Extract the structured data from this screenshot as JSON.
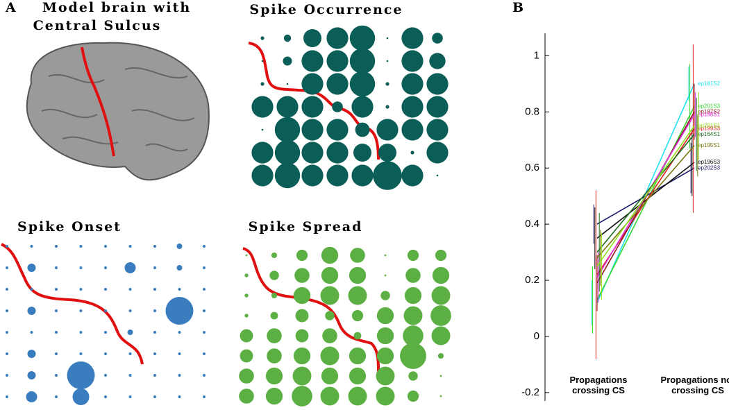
{
  "labels": {
    "panel_a": "A",
    "panel_b": "B",
    "brain_title": [
      "Model brain with",
      "Central Sulcus"
    ]
  },
  "chart_data": [
    {
      "type": "bubble-grid",
      "title": "Spike Occurrence",
      "color": "#0b5e57",
      "values": [
        [
          2,
          4,
          10,
          12,
          14,
          1,
          12,
          6
        ],
        [
          1,
          5,
          12,
          12,
          14,
          1,
          12,
          9
        ],
        [
          2,
          1,
          12,
          12,
          14,
          2,
          12,
          12
        ],
        [
          12,
          12,
          12,
          6,
          12,
          2,
          12,
          12
        ],
        [
          1,
          14,
          12,
          12,
          8,
          12,
          12,
          12
        ],
        [
          12,
          14,
          12,
          12,
          10,
          10,
          2,
          12
        ],
        [
          12,
          14,
          12,
          12,
          12,
          16,
          12,
          1
        ]
      ]
    },
    {
      "type": "bubble-grid",
      "title": "Spike Onset",
      "color": "#3a7dbf",
      "values": [
        [
          1,
          1,
          1,
          1,
          1,
          1,
          1,
          2,
          1
        ],
        [
          1,
          3,
          1,
          1,
          1,
          4,
          1,
          2,
          1
        ],
        [
          1,
          1,
          1,
          1,
          1,
          1,
          1,
          1,
          1
        ],
        [
          1,
          3,
          1,
          1,
          1,
          1,
          1,
          10,
          1
        ],
        [
          1,
          1,
          1,
          1,
          1,
          2,
          1,
          1,
          1
        ],
        [
          1,
          3,
          1,
          1,
          1,
          1,
          1,
          1,
          1
        ],
        [
          1,
          3,
          1,
          10,
          1,
          1,
          1,
          1,
          1
        ],
        [
          1,
          4,
          1,
          6,
          1,
          1,
          1,
          1,
          1
        ]
      ]
    },
    {
      "type": "bubble-grid",
      "title": "Spike Spread",
      "color": "#5cb043",
      "values": [
        [
          1,
          3,
          6,
          9,
          8,
          1,
          6,
          6
        ],
        [
          2,
          5,
          8,
          9,
          9,
          1,
          8,
          9
        ],
        [
          2,
          3,
          9,
          10,
          10,
          5,
          9,
          10
        ],
        [
          2,
          4,
          7,
          5,
          6,
          9,
          10,
          11
        ],
        [
          7,
          8,
          7,
          8,
          4,
          9,
          11,
          10
        ],
        [
          7,
          8,
          9,
          10,
          9,
          9,
          14,
          3
        ],
        [
          8,
          9,
          10,
          9,
          9,
          10,
          5,
          1
        ],
        [
          8,
          9,
          11,
          10,
          10,
          10,
          6,
          1
        ]
      ]
    },
    {
      "type": "line",
      "categories": [
        "Propagations crossing CS",
        "Propagations not crossing CS"
      ],
      "ylim": [
        -0.23,
        1.08
      ],
      "yticks": [
        -0.2,
        0,
        0.2,
        0.4,
        0.6,
        0.8,
        1
      ],
      "series": [
        {
          "name": "ep181S2",
          "color": "#22e0f0",
          "values": [
            0.12,
            0.9
          ],
          "errors": [
            0.08,
            0.06
          ]
        },
        {
          "name": "ep201S3",
          "color": "#33d633",
          "values": [
            0.13,
            0.82
          ],
          "errors": [
            0.12,
            0.15
          ]
        },
        {
          "name": "ep202S3",
          "color": "#1c1c6a",
          "values": [
            0.4,
            0.6
          ],
          "errors": [
            0.07,
            0.09
          ]
        },
        {
          "name": "ep196S3",
          "color": "#111111",
          "values": [
            0.35,
            0.62
          ],
          "errors": [
            0.11,
            0.12
          ]
        },
        {
          "name": "ep199S3",
          "color": "#e02020",
          "values": [
            0.22,
            0.74
          ],
          "errors": [
            0.3,
            0.3
          ]
        },
        {
          "name": "ep187S2",
          "color": "#8b1a1a",
          "values": [
            0.19,
            0.8
          ],
          "errors": [
            0.1,
            0.1
          ]
        },
        {
          "name": "ep198S1",
          "color": "#e030e0",
          "values": [
            0.21,
            0.79
          ],
          "errors": [
            0.09,
            0.08
          ]
        },
        {
          "name": "ep164S1",
          "color": "#1f6b1f",
          "values": [
            0.3,
            0.72
          ],
          "errors": [
            0.14,
            0.13
          ]
        },
        {
          "name": "ep195S1",
          "color": "#7a7a10",
          "values": [
            0.28,
            0.68
          ],
          "errors": [
            0.1,
            0.11
          ]
        },
        {
          "name": "ep201S1",
          "color": "#90e020",
          "values": [
            0.25,
            0.75
          ],
          "errors": [
            0.12,
            0.12
          ]
        }
      ]
    }
  ]
}
